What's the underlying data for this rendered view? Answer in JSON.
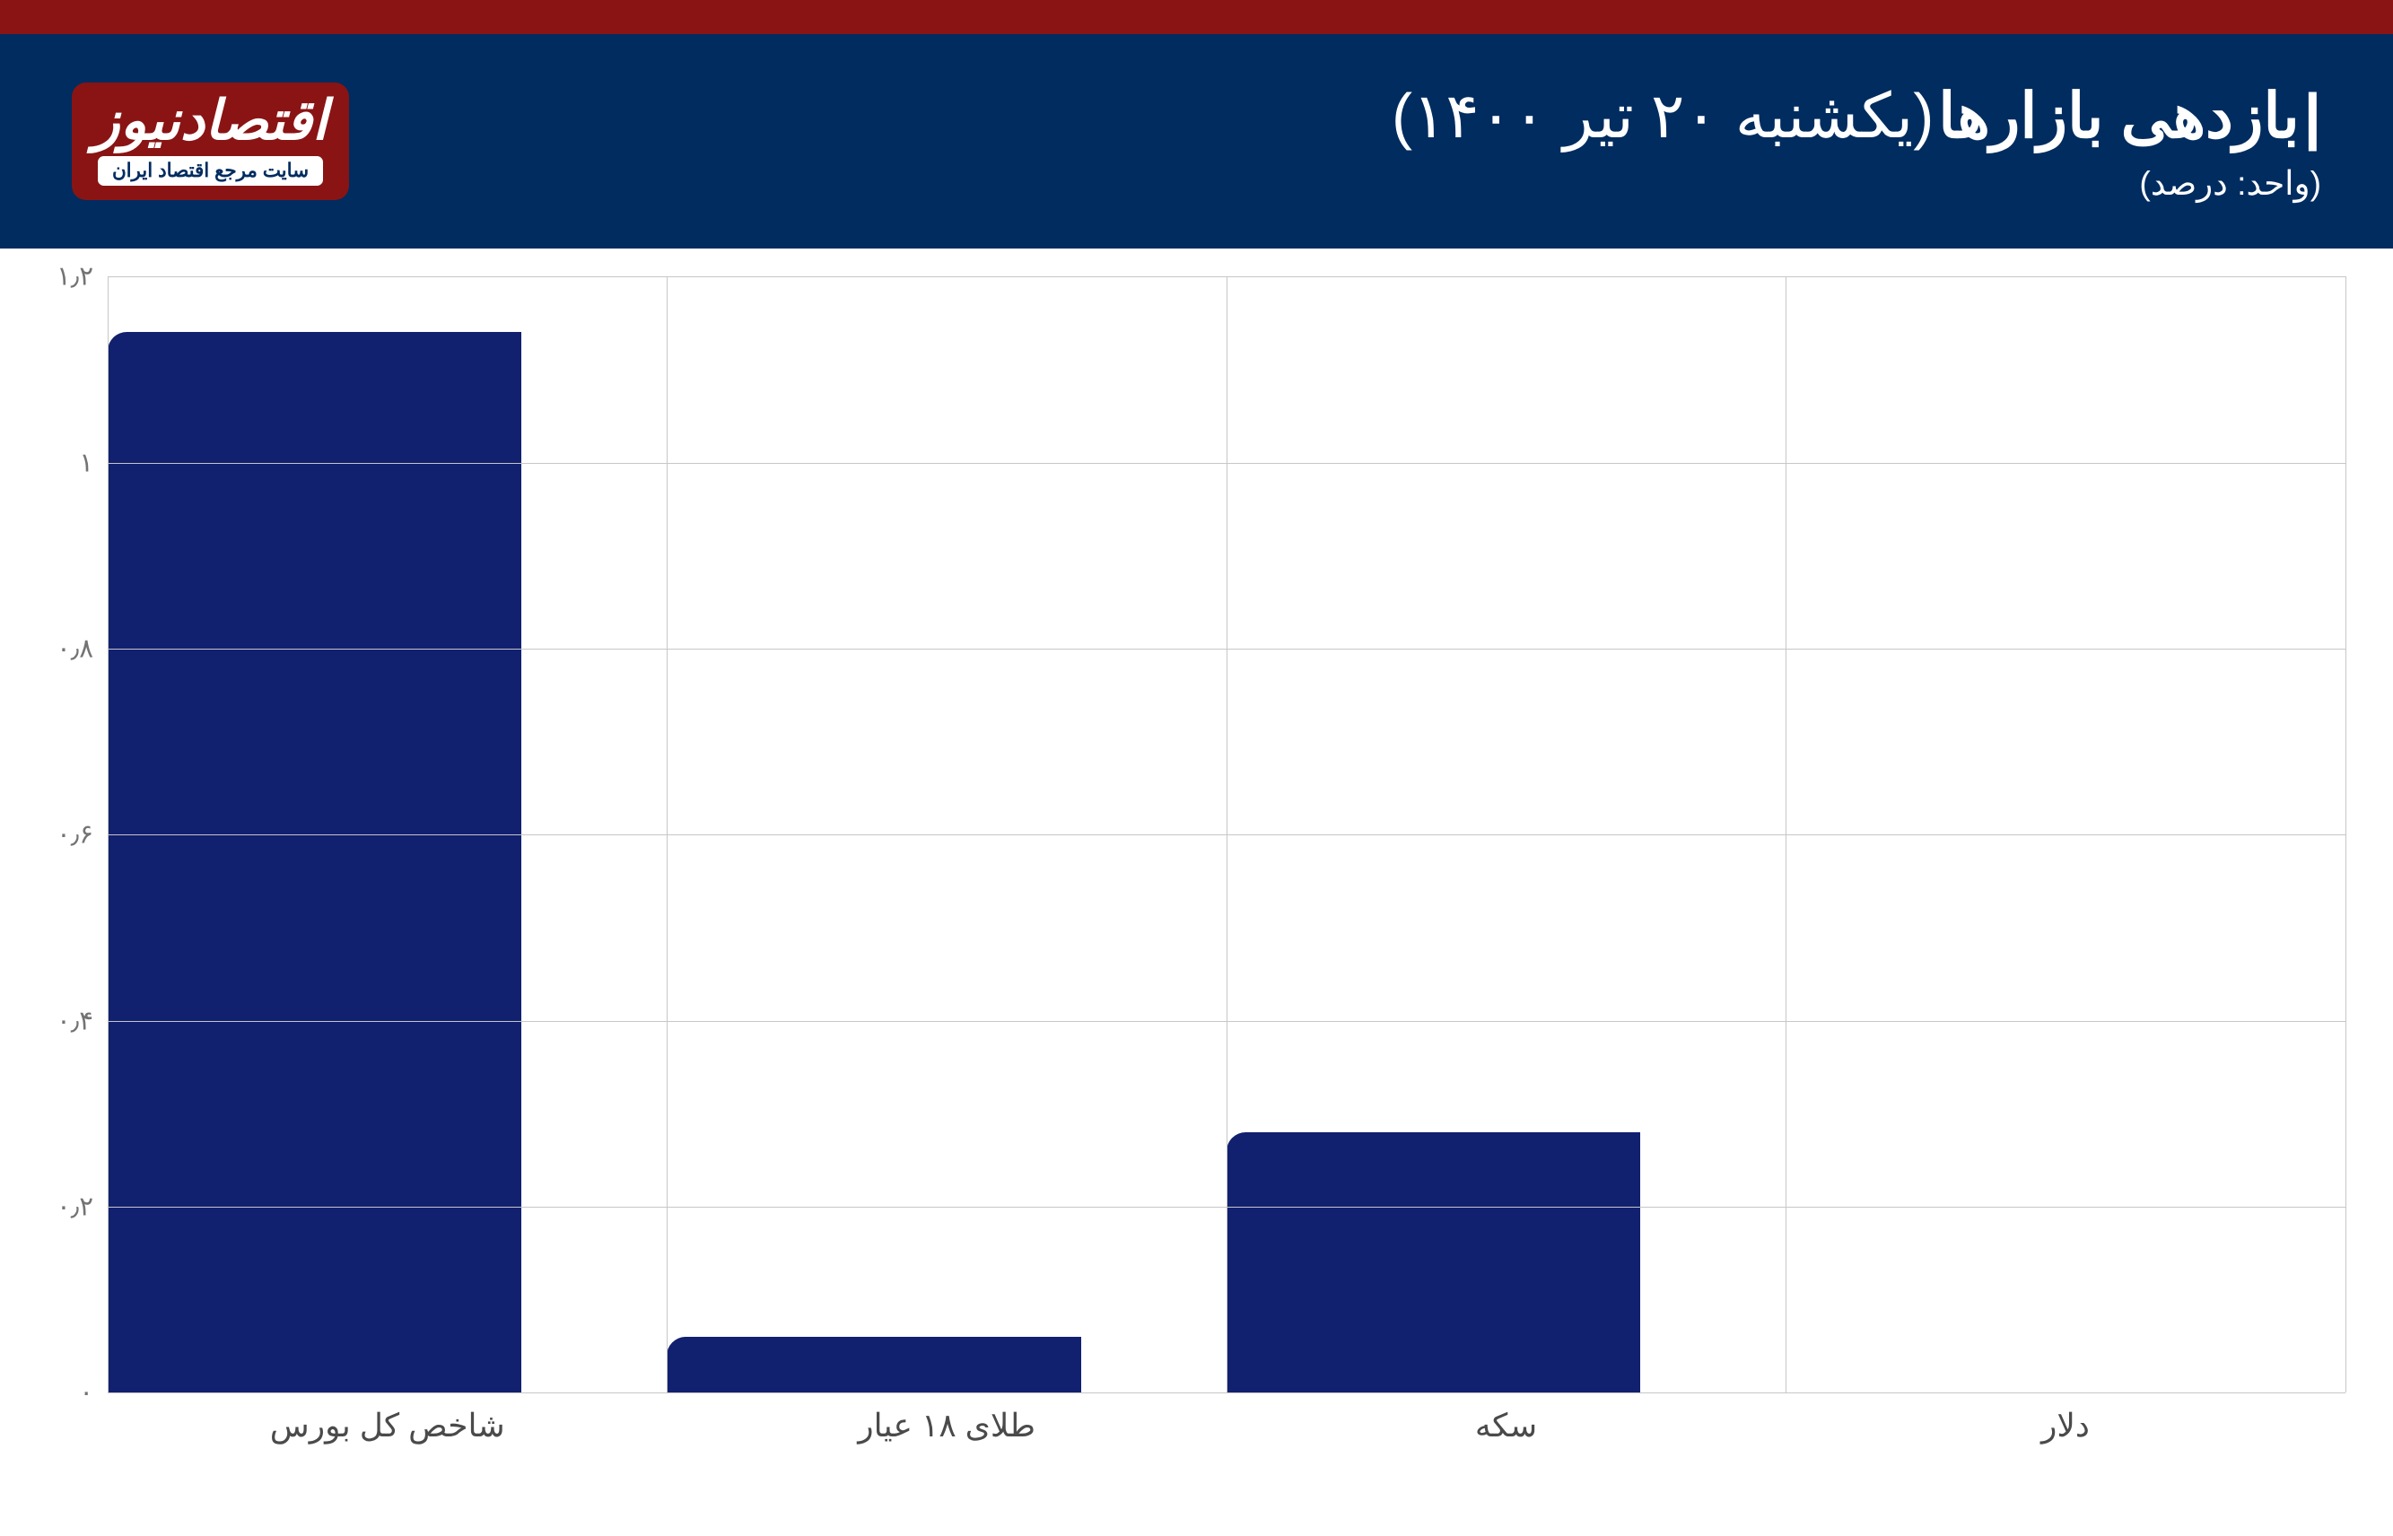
{
  "header": {
    "title": "بازدهی بازارها",
    "date": "(یکشنبه ۲۰ تیر ۱۴۰۰)",
    "unit": "(واحد: درصد)",
    "bg_color": "#002c5f",
    "top_bar_color": "#8a1414"
  },
  "logo": {
    "text": "اقتصادنیوز",
    "tagline": "سایت مرجع اقتصاد ایران",
    "bg_color": "#8a1414",
    "text_color": "#ffffff"
  },
  "chart": {
    "type": "bar",
    "categories": [
      "شاخص کل بورس",
      "طلای ۱۸ عیار",
      "سکه",
      "دلار"
    ],
    "values": [
      1.14,
      0.06,
      0.28,
      0.0
    ],
    "bar_color": "#11206f",
    "ylim": [
      0,
      1.2
    ],
    "ytick_step": 0.2,
    "ytick_labels": [
      "۰",
      "۰٫۲",
      "۰٫۴",
      "۰٫۶",
      "۰٫۸",
      "۱",
      "۱٫۲"
    ],
    "grid_color": "#c7c7c7",
    "background_color": "#ffffff",
    "bar_width": 0.74,
    "axis_label_color": "#737373",
    "category_label_color": "#4a4a4a",
    "axis_fontsize": 18,
    "category_fontsize": 22,
    "bar_radius_top_left": true
  }
}
